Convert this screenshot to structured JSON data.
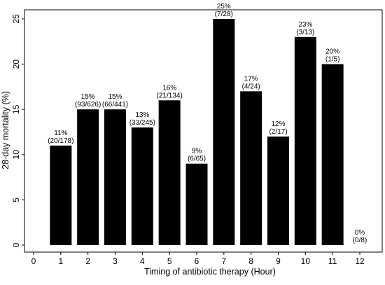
{
  "chart_data": {
    "type": "bar",
    "title": "",
    "xlabel": "Timing of antibiotic therapy (Hour)",
    "ylabel": "28-day mortality (%)",
    "xlim": [
      0,
      12
    ],
    "ylim": [
      0,
      25
    ],
    "x_ticks": [
      "0",
      "1",
      "2",
      "3",
      "4",
      "5",
      "6",
      "7",
      "8",
      "9",
      "10",
      "11",
      "12"
    ],
    "y_ticks": [
      "0",
      "5",
      "10",
      "15",
      "20",
      "25"
    ],
    "grid": false,
    "bar_color": "#000000",
    "bars": [
      {
        "x": 1,
        "value": 11,
        "pct_label": "11%",
        "count_label": "(20/178)"
      },
      {
        "x": 2,
        "value": 15,
        "pct_label": "15%",
        "count_label": "(93/626)"
      },
      {
        "x": 3,
        "value": 15,
        "pct_label": "15%",
        "count_label": "(66/441)"
      },
      {
        "x": 4,
        "value": 13,
        "pct_label": "13%",
        "count_label": "(33/245)"
      },
      {
        "x": 5,
        "value": 16,
        "pct_label": "16%",
        "count_label": "(21/134)"
      },
      {
        "x": 6,
        "value": 9,
        "pct_label": "9%",
        "count_label": "(6/65)"
      },
      {
        "x": 7,
        "value": 25,
        "pct_label": "25%",
        "count_label": "(7/28)"
      },
      {
        "x": 8,
        "value": 17,
        "pct_label": "17%",
        "count_label": "(4/24)"
      },
      {
        "x": 9,
        "value": 12,
        "pct_label": "12%",
        "count_label": "(2/17)"
      },
      {
        "x": 10,
        "value": 23,
        "pct_label": "23%",
        "count_label": "(3/13)"
      },
      {
        "x": 11,
        "value": 20,
        "pct_label": "20%",
        "count_label": "(1/5)"
      },
      {
        "x": 12,
        "value": 0,
        "pct_label": "0%",
        "count_label": "(0/8)"
      }
    ]
  }
}
